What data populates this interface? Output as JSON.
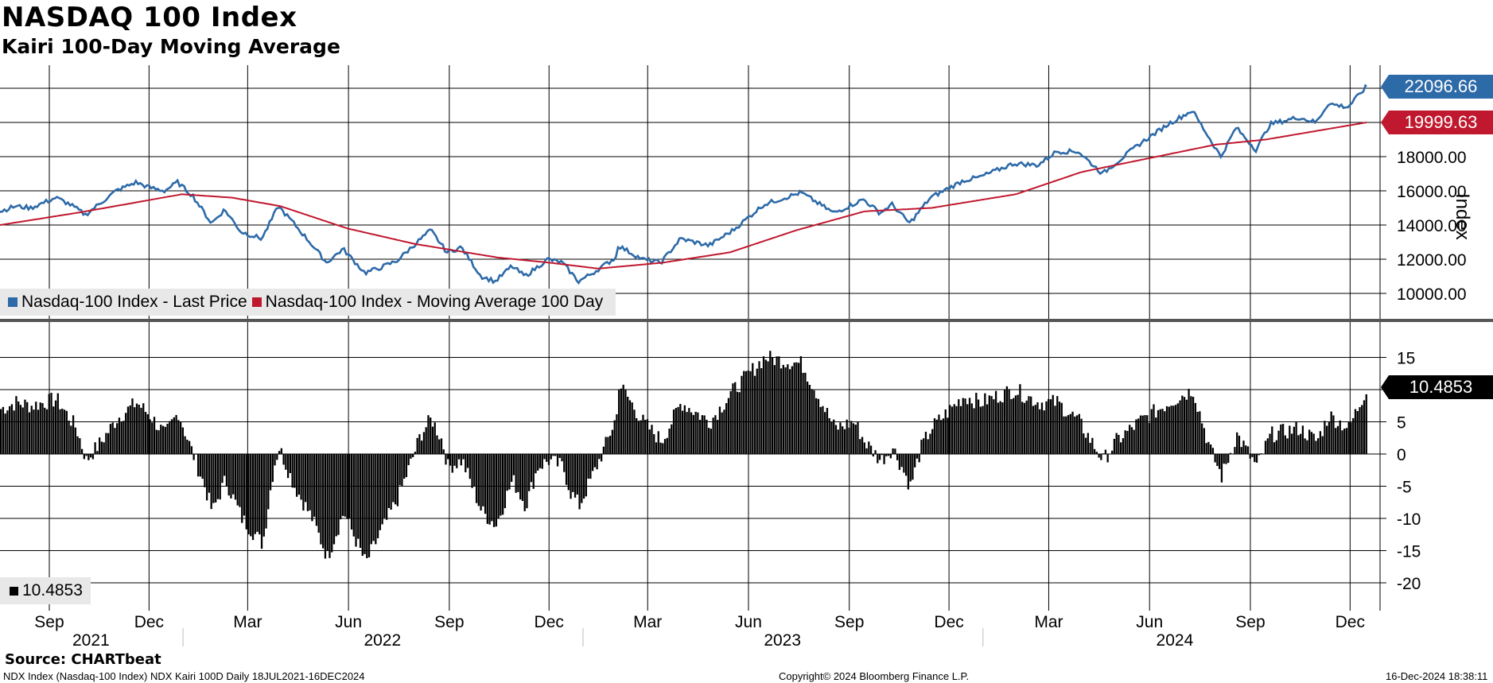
{
  "title": "NASDAQ 100 Index",
  "subtitle": "Kairi 100-Day Moving Average",
  "source": "Source: CHARTbeat",
  "footer": {
    "left": "NDX Index (Nasdaq-100 Index) NDX Kairi 100D  Daily 18JUL2021-16DEC2024",
    "center": "Copyright© 2024 Bloomberg Finance L.P.",
    "right": "16-Dec-2024 18:38:11"
  },
  "colors": {
    "last_price": "#2d6aa8",
    "moving_average": "#c0182e",
    "kairi": "#000000"
  },
  "chart_data": [
    {
      "type": "line",
      "title": "NASDAQ 100 Index",
      "ylabel": "Index",
      "ylim": [
        9000,
        23000
      ],
      "yticks": [
        "10000.00",
        "12000.00",
        "14000.00",
        "16000.00",
        "18000.00"
      ],
      "xlim": [
        "2021-07-18",
        "2024-12-16"
      ],
      "legend": "bottom-left",
      "series": [
        {
          "name": "Nasdaq-100 Index - Last Price",
          "color": "#2d6aa8",
          "points": [
            [
              "2021-07-18",
              14800
            ],
            [
              "2021-08-01",
              15100
            ],
            [
              "2021-08-15",
              15000
            ],
            [
              "2021-09-07",
              15600
            ],
            [
              "2021-09-20",
              15200
            ],
            [
              "2021-10-04",
              14600
            ],
            [
              "2021-10-18",
              15300
            ],
            [
              "2021-11-01",
              16000
            ],
            [
              "2021-11-19",
              16500
            ],
            [
              "2021-12-01",
              16200
            ],
            [
              "2021-12-15",
              16000
            ],
            [
              "2021-12-27",
              16500
            ],
            [
              "2022-01-10",
              15700
            ],
            [
              "2022-01-27",
              14100
            ],
            [
              "2022-02-08",
              14900
            ],
            [
              "2022-02-23",
              13600
            ],
            [
              "2022-03-14",
              13200
            ],
            [
              "2022-03-29",
              15100
            ],
            [
              "2022-04-12",
              14100
            ],
            [
              "2022-04-28",
              12900
            ],
            [
              "2022-05-12",
              11800
            ],
            [
              "2022-05-27",
              12600
            ],
            [
              "2022-06-16",
              11200
            ],
            [
              "2022-06-30",
              11500
            ],
            [
              "2022-07-15",
              11900
            ],
            [
              "2022-08-01",
              12900
            ],
            [
              "2022-08-15",
              13700
            ],
            [
              "2022-08-30",
              12400
            ],
            [
              "2022-09-12",
              12700
            ],
            [
              "2022-09-30",
              11000
            ],
            [
              "2022-10-13",
              10700
            ],
            [
              "2022-10-28",
              11600
            ],
            [
              "2022-11-09",
              11000
            ],
            [
              "2022-11-30",
              12000
            ],
            [
              "2022-12-13",
              11800
            ],
            [
              "2022-12-28",
              10700
            ],
            [
              "2023-01-10",
              11200
            ],
            [
              "2023-01-31",
              12100
            ],
            [
              "2023-02-02",
              12800
            ],
            [
              "2023-02-24",
              12000
            ],
            [
              "2023-03-13",
              11800
            ],
            [
              "2023-03-31",
              13200
            ],
            [
              "2023-04-26",
              12800
            ],
            [
              "2023-05-18",
              13700
            ],
            [
              "2023-06-15",
              15200
            ],
            [
              "2023-07-19",
              15900
            ],
            [
              "2023-08-18",
              14700
            ],
            [
              "2023-09-14",
              15500
            ],
            [
              "2023-09-29",
              14700
            ],
            [
              "2023-10-10",
              15200
            ],
            [
              "2023-10-26",
              14100
            ],
            [
              "2023-11-14",
              15600
            ],
            [
              "2023-12-14",
              16600
            ],
            [
              "2023-12-29",
              16800
            ],
            [
              "2024-01-29",
              17600
            ],
            [
              "2024-02-20",
              17500
            ],
            [
              "2024-03-08",
              18300
            ],
            [
              "2024-03-28",
              18300
            ],
            [
              "2024-04-19",
              17000
            ],
            [
              "2024-05-22",
              18700
            ],
            [
              "2024-06-18",
              19900
            ],
            [
              "2024-07-10",
              20700
            ],
            [
              "2024-08-05",
              18000
            ],
            [
              "2024-08-19",
              19700
            ],
            [
              "2024-09-06",
              18400
            ],
            [
              "2024-09-19",
              19900
            ],
            [
              "2024-10-15",
              20300
            ],
            [
              "2024-10-31",
              20000
            ],
            [
              "2024-11-11",
              21100
            ],
            [
              "2024-11-29",
              20900
            ],
            [
              "2024-12-16",
              22096.66
            ]
          ]
        },
        {
          "name": "Nasdaq-100 Index - Moving Average 100 Day",
          "color": "#c0182e",
          "points": [
            [
              "2021-07-18",
              14000
            ],
            [
              "2021-09-30",
              14750
            ],
            [
              "2021-12-31",
              15800
            ],
            [
              "2022-02-15",
              15600
            ],
            [
              "2022-03-31",
              15100
            ],
            [
              "2022-05-31",
              13800
            ],
            [
              "2022-07-31",
              12900
            ],
            [
              "2022-10-15",
              12100
            ],
            [
              "2022-12-01",
              11800
            ],
            [
              "2023-01-15",
              11450
            ],
            [
              "2023-03-15",
              11800
            ],
            [
              "2023-05-15",
              12400
            ],
            [
              "2023-07-15",
              13700
            ],
            [
              "2023-09-15",
              14800
            ],
            [
              "2023-11-15",
              15000
            ],
            [
              "2024-01-31",
              15800
            ],
            [
              "2024-03-31",
              17100
            ],
            [
              "2024-05-31",
              17900
            ],
            [
              "2024-07-31",
              18700
            ],
            [
              "2024-09-15",
              19000
            ],
            [
              "2024-10-31",
              19500
            ],
            [
              "2024-12-16",
              19999.63
            ]
          ]
        }
      ],
      "last_values": {
        "last_price": "22096.66",
        "moving_average": "19999.63"
      }
    },
    {
      "type": "bar",
      "title": "Kairi 100-Day Moving Average",
      "ylim": [
        -23,
        19
      ],
      "yticks": [
        "15",
        "10",
        "5",
        "0",
        "-5",
        "-10",
        "-15",
        "-20"
      ],
      "series": [
        {
          "name": "Kairi",
          "color": "#000000",
          "points": [
            [
              "2021-07-18",
              7
            ],
            [
              "2021-08-01",
              8
            ],
            [
              "2021-08-15",
              7.5
            ],
            [
              "2021-09-07",
              8.5
            ],
            [
              "2021-09-25",
              4
            ],
            [
              "2021-10-04",
              -1
            ],
            [
              "2021-10-18",
              2
            ],
            [
              "2021-11-01",
              5.5
            ],
            [
              "2021-11-19",
              8
            ],
            [
              "2021-12-01",
              6
            ],
            [
              "2021-12-15",
              3
            ],
            [
              "2021-12-27",
              6.5
            ],
            [
              "2022-01-05",
              2
            ],
            [
              "2022-01-20",
              -5
            ],
            [
              "2022-01-27",
              -9
            ],
            [
              "2022-02-08",
              -4
            ],
            [
              "2022-02-23",
              -10
            ],
            [
              "2022-03-14",
              -14
            ],
            [
              "2022-03-24",
              -2
            ],
            [
              "2022-03-29",
              1
            ],
            [
              "2022-04-12",
              -5
            ],
            [
              "2022-04-28",
              -10
            ],
            [
              "2022-05-12",
              -16
            ],
            [
              "2022-05-27",
              -9
            ],
            [
              "2022-06-16",
              -17
            ],
            [
              "2022-06-30",
              -12
            ],
            [
              "2022-07-15",
              -7
            ],
            [
              "2022-07-28",
              -1
            ],
            [
              "2022-08-05",
              3
            ],
            [
              "2022-08-15",
              5.5
            ],
            [
              "2022-08-25",
              2
            ],
            [
              "2022-08-30",
              -2
            ],
            [
              "2022-09-12",
              -1
            ],
            [
              "2022-09-30",
              -9
            ],
            [
              "2022-10-13",
              -11
            ],
            [
              "2022-10-28",
              -4
            ],
            [
              "2022-11-09",
              -8
            ],
            [
              "2022-11-20",
              -2
            ],
            [
              "2022-11-30",
              -1
            ],
            [
              "2022-12-13",
              -2
            ],
            [
              "2022-12-20",
              -6
            ],
            [
              "2022-12-28",
              -8
            ],
            [
              "2023-01-10",
              -3
            ],
            [
              "2023-01-20",
              1
            ],
            [
              "2023-01-31",
              6
            ],
            [
              "2023-02-02",
              11
            ],
            [
              "2023-02-24",
              5
            ],
            [
              "2023-03-13",
              2
            ],
            [
              "2023-03-31",
              8
            ],
            [
              "2023-04-26",
              5
            ],
            [
              "2023-05-18",
              10
            ],
            [
              "2023-06-15",
              15
            ],
            [
              "2023-07-19",
              14
            ],
            [
              "2023-08-18",
              4
            ],
            [
              "2023-09-05",
              5
            ],
            [
              "2023-09-14",
              2
            ],
            [
              "2023-09-29",
              -1
            ],
            [
              "2023-10-10",
              1
            ],
            [
              "2023-10-26",
              -5
            ],
            [
              "2023-11-05",
              1
            ],
            [
              "2023-11-14",
              4
            ],
            [
              "2023-12-14",
              9
            ],
            [
              "2023-12-29",
              8
            ],
            [
              "2024-01-29",
              10
            ],
            [
              "2024-02-20",
              8
            ],
            [
              "2024-03-08",
              8
            ],
            [
              "2024-03-28",
              5
            ],
            [
              "2024-04-19",
              -1
            ],
            [
              "2024-05-01",
              2
            ],
            [
              "2024-05-22",
              5
            ],
            [
              "2024-06-18",
              8
            ],
            [
              "2024-07-10",
              10
            ],
            [
              "2024-07-25",
              1
            ],
            [
              "2024-08-05",
              -3.5
            ],
            [
              "2024-08-19",
              3
            ],
            [
              "2024-09-06",
              -2
            ],
            [
              "2024-09-19",
              3
            ],
            [
              "2024-10-15",
              4
            ],
            [
              "2024-10-31",
              2
            ],
            [
              "2024-11-11",
              6
            ],
            [
              "2024-11-29",
              4
            ],
            [
              "2024-12-16",
              10.4853
            ]
          ]
        }
      ],
      "last_value": "10.4853",
      "legend_value": "10.4853"
    }
  ],
  "x_axis": {
    "months": [
      {
        "label": "Sep",
        "date": "2021-09-01"
      },
      {
        "label": "Dec",
        "date": "2021-12-01"
      },
      {
        "label": "Mar",
        "date": "2022-03-01"
      },
      {
        "label": "Jun",
        "date": "2022-06-01"
      },
      {
        "label": "Sep",
        "date": "2022-09-01"
      },
      {
        "label": "Dec",
        "date": "2022-12-01"
      },
      {
        "label": "Mar",
        "date": "2023-03-01"
      },
      {
        "label": "Jun",
        "date": "2023-06-01"
      },
      {
        "label": "Sep",
        "date": "2023-09-01"
      },
      {
        "label": "Dec",
        "date": "2023-12-01"
      },
      {
        "label": "Mar",
        "date": "2024-03-01"
      },
      {
        "label": "Jun",
        "date": "2024-06-01"
      },
      {
        "label": "Sep",
        "date": "2024-09-01"
      },
      {
        "label": "Dec",
        "date": "2024-12-01"
      }
    ],
    "years": [
      {
        "label": "2021",
        "start": "2021-07-18",
        "end": "2021-12-31"
      },
      {
        "label": "2022",
        "start": "2022-01-01",
        "end": "2022-12-31"
      },
      {
        "label": "2023",
        "start": "2023-01-01",
        "end": "2023-12-31"
      },
      {
        "label": "2024",
        "start": "2024-01-01",
        "end": "2024-12-16"
      }
    ]
  },
  "legend": {
    "last_price": "Nasdaq-100 Index - Last Price",
    "moving_average": "Nasdaq-100 Index - Moving Average 100 Day"
  }
}
